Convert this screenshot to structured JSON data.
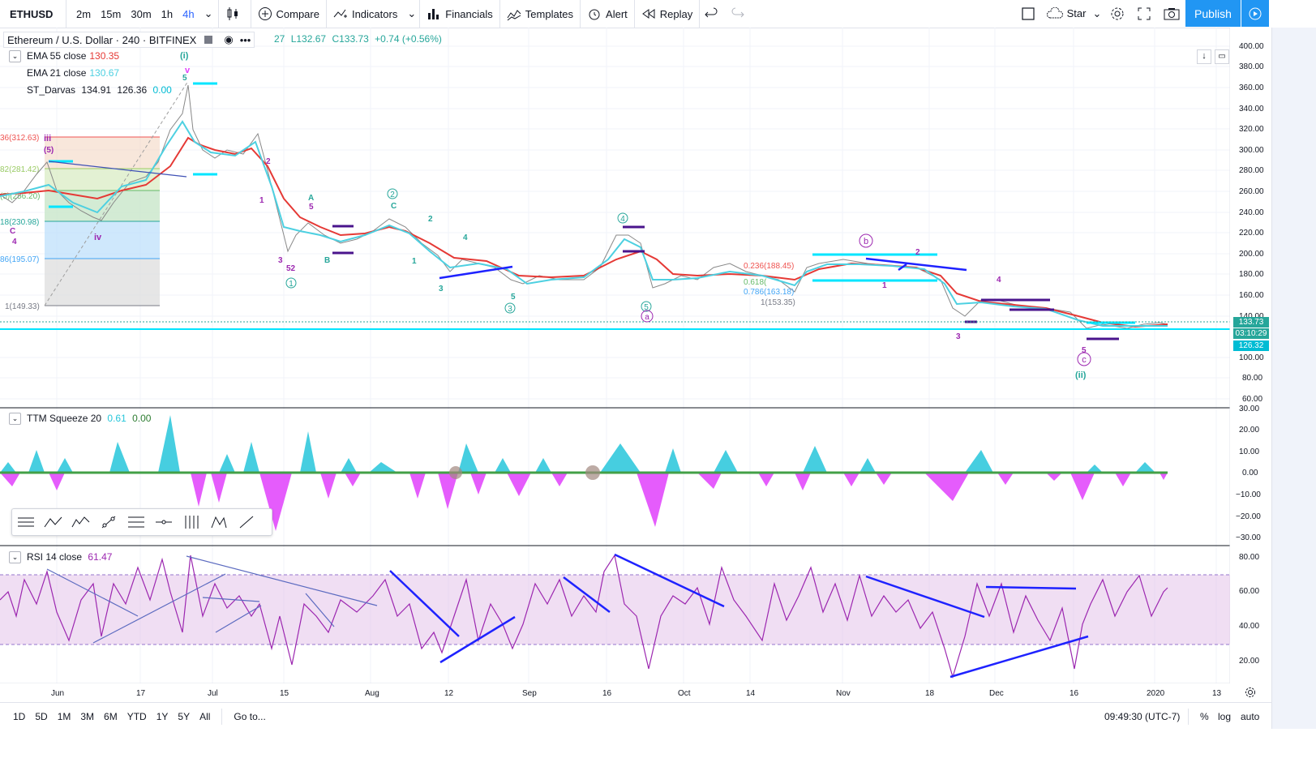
{
  "toolbar": {
    "symbol": "ETHUSD",
    "intervals": [
      "2m",
      "15m",
      "30m",
      "1h",
      "4h"
    ],
    "active_interval": "4h",
    "compare": "Compare",
    "indicators": "Indicators",
    "financials": "Financials",
    "templates": "Templates",
    "alert": "Alert",
    "replay": "Replay",
    "layout_name": "Star",
    "publish": "Publish"
  },
  "symbol_legend": {
    "title": "Ethereum / U.S. Dollar · 240 · BITFINEX",
    "ohlc_partial": "27",
    "low": "L132.67",
    "close": "C133.73",
    "change": "+0.74 (+0.56%)"
  },
  "indicators": {
    "ema55": {
      "label": "EMA 55 close",
      "value": "130.35",
      "color": "#e53935"
    },
    "ema21": {
      "label": "EMA 21 close",
      "value": "130.67",
      "color": "#4dd0e1"
    },
    "darvas": {
      "label": "ST_Darvas",
      "v1": "134.91",
      "v2": "126.36",
      "v3": "0.00",
      "color": "#00bcd4"
    },
    "ttm": {
      "label": "TTM Squeeze 20",
      "v1": "0.61",
      "v2": "0.00"
    },
    "rsi": {
      "label": "RSI 14 close",
      "value": "61.47",
      "color": "#9c27b0"
    }
  },
  "price_axis": {
    "ticks": [
      "400.00",
      "380.00",
      "360.00",
      "340.00",
      "320.00",
      "300.00",
      "280.00",
      "260.00",
      "240.00",
      "220.00",
      "200.00",
      "180.00",
      "160.00",
      "140.00",
      "100.00",
      "80.00",
      "60.00"
    ],
    "current_price": "133.73",
    "countdown": "03:10:29",
    "darvas_low": "126.32"
  },
  "ttm_axis": {
    "ticks": [
      "30.00",
      "20.00",
      "10.00",
      "0.00",
      "−10.00",
      "−20.00",
      "−30.00"
    ]
  },
  "rsi_axis": {
    "ticks": [
      "80.00",
      "60.00",
      "40.00",
      "20.00"
    ]
  },
  "time_axis": {
    "ticks": [
      "Jun",
      "17",
      "Jul",
      "15",
      "Aug",
      "12",
      "Sep",
      "16",
      "Oct",
      "14",
      "Nov",
      "18",
      "Dec",
      "16",
      "2020",
      "13"
    ]
  },
  "fib_levels": [
    "36(312.63)",
    "82(281.42)",
    "(5)(256.20)",
    "18(230.98)",
    "86(195.07)",
    "1(149.33)"
  ],
  "fib_right": [
    "0.236(188.45)",
    "0.618(",
    "0.786(163.18)",
    "1(153.35)"
  ],
  "wave_labels": {
    "i": "(i)",
    "ii": "(ii)",
    "five": "5",
    "iv": "iv",
    "iii": "iii",
    "c1": "C",
    "four": "4",
    "one": "1",
    "two": "2",
    "three": "3",
    "A": "A",
    "B": "B",
    "a": "a",
    "b": "b",
    "c": "c",
    "circled1": "1",
    "circled2": "2",
    "circled3": "3",
    "circled4": "4",
    "circled5": "5",
    "fifty_two": "52",
    "v": "v",
    "five_paren": "(5)"
  },
  "bottom": {
    "ranges": [
      "1D",
      "5D",
      "1M",
      "3M",
      "6M",
      "YTD",
      "1Y",
      "5Y",
      "All"
    ],
    "goto": "Go to...",
    "time": "09:49:30 (UTC-7)",
    "percent": "%",
    "log": "log",
    "auto": "auto"
  },
  "icons": [
    "candles-icon",
    "compare-icon",
    "indicators-icon",
    "financials-icon",
    "templates-icon",
    "alert-icon",
    "replay-icon",
    "undo-icon",
    "redo-icon",
    "rectangle-icon",
    "cloud-icon",
    "gear-icon",
    "fullscreen-icon",
    "camera-icon",
    "play-icon"
  ]
}
